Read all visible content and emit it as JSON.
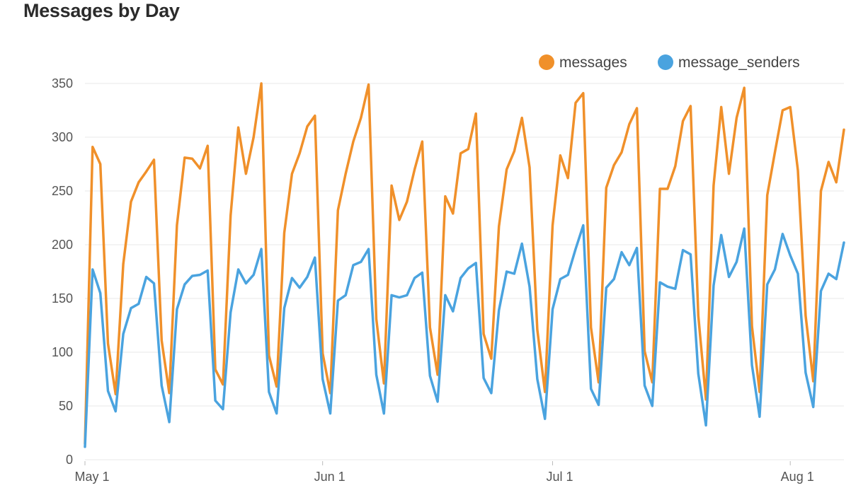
{
  "title": "Messages by Day",
  "chart_data": {
    "type": "line",
    "title": "Messages by Day",
    "xlabel": "",
    "ylabel": "",
    "x_start": "2017-05-01",
    "x_ticks": [
      "May 1",
      "Jun 1",
      "Jul 1",
      "Aug 1"
    ],
    "x_tick_dates": [
      "2017-05-01",
      "2017-06-01",
      "2017-07-01",
      "2017-08-01"
    ],
    "ylim": [
      0,
      350
    ],
    "y_ticks": [
      0,
      50,
      100,
      150,
      200,
      250,
      300,
      350
    ],
    "grid": true,
    "legend_position": "top-right",
    "series": [
      {
        "name": "messages",
        "color": "#f0902a",
        "values": [
          15,
          291,
          275,
          108,
          61,
          182,
          240,
          258,
          268,
          279,
          111,
          62,
          218,
          281,
          280,
          271,
          292,
          84,
          70,
          227,
          309,
          266,
          300,
          350,
          97,
          68,
          211,
          266,
          285,
          310,
          320,
          99,
          62,
          232,
          266,
          296,
          318,
          349,
          131,
          71,
          255,
          223,
          240,
          270,
          296,
          123,
          79,
          245,
          229,
          285,
          289,
          322,
          117,
          94,
          217,
          270,
          287,
          318,
          272,
          121,
          63,
          218,
          283,
          262,
          332,
          341,
          123,
          72,
          253,
          274,
          286,
          312,
          327,
          101,
          72,
          252,
          252,
          273,
          315,
          329,
          134,
          56,
          255,
          328,
          266,
          318,
          346,
          124,
          63,
          246,
          286,
          325,
          328,
          269,
          134,
          73,
          250,
          277,
          258,
          307
        ]
      },
      {
        "name": "message_senders",
        "color": "#4aa3df",
        "values": [
          12,
          177,
          155,
          64,
          45,
          117,
          141,
          145,
          170,
          164,
          69,
          35,
          140,
          163,
          171,
          172,
          176,
          55,
          47,
          137,
          177,
          164,
          172,
          196,
          63,
          43,
          141,
          169,
          160,
          170,
          188,
          75,
          43,
          148,
          153,
          181,
          184,
          196,
          79,
          43,
          153,
          151,
          153,
          169,
          174,
          78,
          54,
          153,
          138,
          169,
          178,
          183,
          76,
          62,
          139,
          175,
          173,
          201,
          161,
          75,
          38,
          140,
          168,
          172,
          196,
          218,
          66,
          51,
          160,
          168,
          193,
          181,
          197,
          69,
          50,
          165,
          161,
          159,
          195,
          191,
          80,
          32,
          162,
          209,
          170,
          184,
          215,
          88,
          40,
          163,
          177,
          210,
          190,
          173,
          81,
          49,
          157,
          173,
          168,
          202
        ]
      }
    ]
  }
}
